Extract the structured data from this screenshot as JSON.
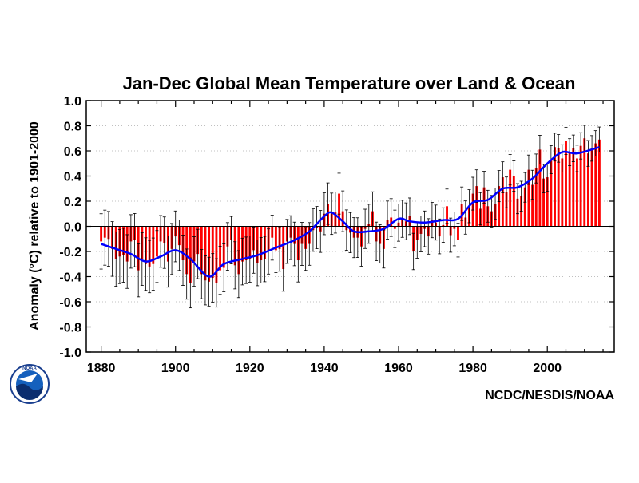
{
  "credit": "NCDC/NESDIS/NOAA",
  "logo": {
    "icon": "noaa-logo-icon",
    "text": "NOAA"
  },
  "colors": {
    "bars": "#ff0000",
    "smooth": "#0000ff",
    "error_bars": "#000000",
    "grid": "#c0c0c0"
  },
  "chart_data": {
    "type": "bar",
    "title": "Jan-Dec Global Mean Temperature over Land & Ocean",
    "xlabel": "",
    "ylabel": "Anomaly (°C) relative to 1901-2000",
    "xlim": [
      1876,
      2018
    ],
    "ylim": [
      -1.0,
      1.0
    ],
    "xticks": [
      1880,
      1900,
      1920,
      1940,
      1960,
      1980,
      2000
    ],
    "yticks": [
      -1.0,
      -0.8,
      -0.6,
      -0.4,
      -0.2,
      0.0,
      0.2,
      0.4,
      0.6,
      0.8,
      1.0
    ],
    "ytick_labels": [
      "-1.0",
      "-0.8",
      "-0.6",
      "-0.4",
      "-0.2",
      "0.0",
      "0.2",
      "0.4",
      "0.6",
      "0.8",
      "1.0"
    ],
    "grid": "dotted",
    "start_year": 1880,
    "series": [
      {
        "kind": "bars",
        "values": [
          -0.12,
          -0.09,
          -0.1,
          -0.18,
          -0.26,
          -0.24,
          -0.23,
          -0.28,
          -0.12,
          -0.11,
          -0.35,
          -0.26,
          -0.3,
          -0.32,
          -0.3,
          -0.24,
          -0.12,
          -0.13,
          -0.28,
          -0.18,
          -0.08,
          -0.15,
          -0.27,
          -0.38,
          -0.45,
          -0.28,
          -0.22,
          -0.38,
          -0.43,
          -0.44,
          -0.41,
          -0.45,
          -0.35,
          -0.33,
          -0.16,
          -0.11,
          -0.31,
          -0.38,
          -0.28,
          -0.27,
          -0.26,
          -0.19,
          -0.29,
          -0.27,
          -0.26,
          -0.2,
          -0.09,
          -0.19,
          -0.18,
          -0.34,
          -0.12,
          -0.09,
          -0.14,
          -0.27,
          -0.14,
          -0.18,
          -0.14,
          -0.03,
          -0.01,
          -0.04,
          0.1,
          0.18,
          0.1,
          0.11,
          0.26,
          0.12,
          -0.03,
          -0.05,
          -0.09,
          -0.09,
          -0.16,
          -0.02,
          0.02,
          0.12,
          -0.12,
          -0.14,
          -0.18,
          0.05,
          0.07,
          -0.02,
          0.03,
          0.06,
          0.04,
          0.08,
          -0.2,
          -0.11,
          -0.06,
          -0.02,
          -0.08,
          0.05,
          0.03,
          -0.08,
          0.01,
          0.16,
          -0.07,
          -0.02,
          -0.11,
          0.18,
          0.07,
          0.16,
          0.26,
          0.32,
          0.14,
          0.31,
          0.16,
          0.12,
          0.18,
          0.32,
          0.39,
          0.27,
          0.45,
          0.4,
          0.22,
          0.24,
          0.31,
          0.45,
          0.33,
          0.46,
          0.61,
          0.38,
          0.39,
          0.53,
          0.63,
          0.62,
          0.54,
          0.68,
          0.59,
          0.62,
          0.54,
          0.64,
          0.7,
          0.58,
          0.62,
          0.66,
          0.69
        ]
      },
      {
        "kind": "smoothed-line",
        "x": [
          1880,
          1884,
          1888,
          1892,
          1896,
          1900,
          1904,
          1909,
          1913,
          1918,
          1922,
          1927,
          1932,
          1936,
          1940,
          1942,
          1945,
          1948,
          1952,
          1956,
          1960,
          1963,
          1967,
          1972,
          1976,
          1980,
          1984,
          1988,
          1992,
          1996,
          2000,
          2004,
          2008,
          2014
        ],
        "values": [
          -0.14,
          -0.18,
          -0.22,
          -0.28,
          -0.24,
          -0.19,
          -0.26,
          -0.4,
          -0.3,
          -0.26,
          -0.23,
          -0.17,
          -0.11,
          -0.04,
          0.08,
          0.11,
          0.04,
          -0.04,
          -0.04,
          -0.02,
          0.06,
          0.04,
          0.03,
          0.05,
          0.06,
          0.19,
          0.21,
          0.3,
          0.31,
          0.38,
          0.5,
          0.59,
          0.58,
          0.63
        ]
      }
    ],
    "error_bar_halfwidth_note": "",
    "error_bars": {
      "halfwidth_start": 0.22,
      "halfwidth_end": 0.1
    }
  }
}
